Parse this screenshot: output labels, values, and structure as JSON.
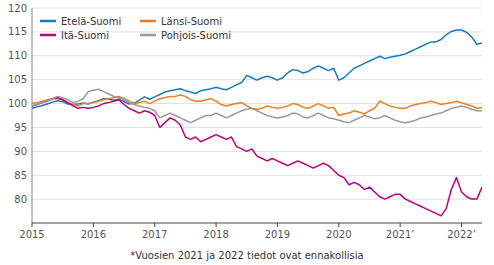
{
  "chart_data": {
    "type": "line",
    "footnote": "*Vuosien 2021 ja 2022 tiedot ovat ennakollisia",
    "categories": [
      "2015",
      null,
      null,
      null,
      null,
      null,
      null,
      null,
      null,
      null,
      null,
      null,
      "2016",
      null,
      null,
      null,
      null,
      null,
      null,
      null,
      null,
      null,
      null,
      null,
      "2017",
      null,
      null,
      null,
      null,
      null,
      null,
      null,
      null,
      null,
      null,
      null,
      "2018",
      null,
      null,
      null,
      null,
      null,
      null,
      null,
      null,
      null,
      null,
      null,
      "2019",
      null,
      null,
      null,
      null,
      null,
      null,
      null,
      null,
      null,
      null,
      null,
      "2020",
      null,
      null,
      null,
      null,
      null,
      null,
      null,
      null,
      null,
      null,
      null,
      "2021’",
      null,
      null,
      null,
      null,
      null,
      null,
      null,
      null,
      null,
      null,
      null,
      "2022’",
      null,
      null,
      null,
      null
    ],
    "ylim": [
      75,
      120
    ],
    "yticks": [
      80,
      85,
      90,
      95,
      100,
      105,
      110,
      115,
      120
    ],
    "grid": true,
    "legend": "upper-left",
    "series": [
      {
        "name": "Etelä-Suomi",
        "color": "#1a7bb9",
        "values": [
          99.0,
          99.3,
          99.6,
          99.9,
          100.3,
          100.6,
          100.4,
          99.9,
          99.8,
          99.9,
          100.1,
          99.9,
          100.3,
          100.6,
          101.0,
          100.9,
          100.7,
          100.9,
          100.4,
          99.9,
          100.1,
          100.7,
          101.4,
          100.9,
          101.4,
          101.9,
          102.4,
          102.7,
          102.9,
          103.1,
          102.7,
          102.4,
          102.1,
          102.7,
          102.9,
          103.1,
          103.4,
          103.1,
          102.9,
          103.4,
          103.9,
          104.4,
          105.9,
          105.4,
          104.9,
          105.4,
          105.7,
          105.4,
          104.9,
          105.4,
          106.4,
          107.1,
          106.9,
          106.4,
          106.7,
          107.4,
          107.9,
          107.4,
          106.9,
          107.4,
          104.9,
          105.4,
          106.4,
          107.4,
          107.9,
          108.4,
          108.9,
          109.4,
          109.9,
          109.4,
          109.7,
          109.9,
          110.1,
          110.4,
          110.9,
          111.4,
          111.9,
          112.4,
          112.9,
          112.9,
          113.4,
          114.4,
          115.1,
          115.4,
          115.4,
          114.9,
          113.9,
          112.4,
          112.7
        ]
      },
      {
        "name": "Länsi-Suomi",
        "color": "#e8801e",
        "values": [
          100.0,
          100.2,
          100.5,
          100.8,
          101.0,
          101.0,
          100.8,
          100.2,
          99.8,
          99.5,
          100.0,
          100.0,
          100.2,
          100.5,
          100.8,
          101.0,
          101.2,
          101.5,
          101.0,
          100.5,
          100.0,
          100.2,
          100.5,
          100.0,
          100.5,
          101.0,
          101.2,
          101.5,
          101.5,
          101.8,
          101.5,
          100.8,
          100.5,
          100.5,
          100.8,
          101.0,
          100.5,
          99.8,
          99.5,
          99.8,
          100.0,
          100.2,
          99.5,
          99.0,
          98.8,
          99.0,
          99.5,
          99.2,
          99.0,
          99.2,
          99.5,
          100.0,
          99.8,
          99.2,
          99.0,
          99.5,
          100.0,
          99.5,
          99.0,
          99.2,
          97.5,
          97.8,
          98.0,
          98.5,
          98.2,
          97.8,
          98.5,
          99.0,
          100.5,
          100.0,
          99.5,
          99.2,
          99.0,
          99.0,
          99.5,
          99.8,
          100.0,
          100.2,
          100.5,
          100.2,
          99.8,
          100.0,
          100.2,
          100.5,
          100.2,
          99.8,
          99.5,
          99.0,
          99.2
        ]
      },
      {
        "name": "Itä-Suomi",
        "color": "#be0080",
        "values": [
          99.5,
          99.8,
          100.2,
          100.5,
          101.0,
          101.2,
          100.8,
          100.2,
          99.5,
          99.0,
          99.2,
          99.0,
          99.2,
          99.5,
          100.0,
          100.2,
          100.5,
          100.8,
          99.8,
          99.0,
          98.5,
          98.0,
          98.5,
          98.2,
          97.5,
          95.0,
          96.0,
          97.0,
          96.5,
          95.5,
          93.0,
          92.5,
          93.0,
          92.0,
          92.5,
          93.0,
          93.5,
          93.0,
          92.5,
          93.0,
          91.0,
          90.5,
          90.0,
          90.5,
          89.0,
          88.5,
          88.0,
          88.5,
          88.0,
          87.5,
          87.0,
          87.5,
          88.0,
          87.5,
          87.0,
          86.5,
          87.0,
          87.5,
          87.0,
          86.0,
          85.0,
          84.5,
          83.0,
          83.5,
          83.0,
          82.0,
          82.5,
          81.5,
          80.5,
          80.0,
          80.5,
          81.0,
          81.0,
          80.0,
          79.5,
          79.0,
          78.5,
          78.0,
          77.5,
          77.0,
          76.5,
          78.0,
          82.0,
          84.5,
          81.5,
          80.5,
          80.0,
          80.0,
          82.5
        ]
      },
      {
        "name": "Pohjois-Suomi",
        "color": "#9a9a9a",
        "values": [
          99.5,
          99.8,
          100.2,
          100.5,
          101.0,
          101.5,
          101.2,
          100.8,
          100.2,
          100.5,
          101.0,
          102.5,
          102.8,
          103.0,
          102.5,
          102.0,
          101.5,
          101.2,
          100.8,
          100.2,
          99.8,
          99.5,
          99.2,
          99.0,
          98.5,
          97.0,
          97.5,
          98.0,
          97.5,
          97.0,
          96.5,
          96.0,
          96.5,
          97.0,
          97.5,
          97.5,
          98.0,
          97.5,
          97.0,
          97.5,
          98.0,
          98.5,
          98.8,
          99.0,
          98.5,
          98.0,
          97.5,
          97.2,
          97.0,
          97.2,
          97.5,
          98.0,
          97.8,
          97.2,
          97.0,
          97.5,
          98.0,
          97.5,
          97.0,
          96.8,
          96.5,
          96.2,
          96.0,
          96.5,
          97.0,
          97.5,
          97.2,
          96.8,
          97.0,
          97.5,
          97.0,
          96.5,
          96.2,
          96.0,
          96.2,
          96.5,
          97.0,
          97.2,
          97.5,
          97.8,
          98.0,
          98.5,
          99.0,
          99.2,
          99.5,
          99.2,
          98.8,
          98.5,
          98.5
        ]
      }
    ]
  }
}
